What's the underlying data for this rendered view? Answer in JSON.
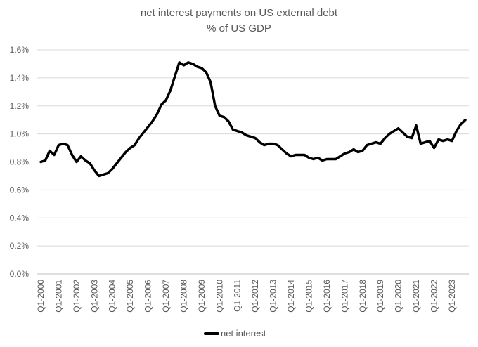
{
  "chart_data": {
    "type": "line",
    "title": "net interest payments on US external debt",
    "subtitle": "% of US GDP",
    "xlabel": "",
    "ylabel": "",
    "ylim": [
      0,
      1.6
    ],
    "y_ticks": [
      "0.0%",
      "0.2%",
      "0.4%",
      "0.6%",
      "0.8%",
      "1.0%",
      "1.2%",
      "1.4%",
      "1.6%"
    ],
    "x_tick_labels": [
      "Q1-2000",
      "Q1-2001",
      "Q1-2002",
      "Q1-2003",
      "Q1-2004",
      "Q1-2005",
      "Q1-2006",
      "Q1-2007",
      "Q1-2008",
      "Q1-2009",
      "Q1-2010",
      "Q1-2011",
      "Q1-2012",
      "Q1-2013",
      "Q1-2014",
      "Q1-2015",
      "Q1-2016",
      "Q1-2017",
      "Q1-2018",
      "Q1-2019",
      "Q1-2020",
      "Q1-2021",
      "Q1-2022",
      "Q1-2023"
    ],
    "grid": true,
    "legend_position": "bottom",
    "series": [
      {
        "name": "net interest",
        "color": "#000000",
        "values": [
          0.8,
          0.81,
          0.88,
          0.85,
          0.92,
          0.93,
          0.92,
          0.85,
          0.8,
          0.84,
          0.81,
          0.79,
          0.74,
          0.7,
          0.71,
          0.72,
          0.75,
          0.79,
          0.83,
          0.87,
          0.9,
          0.92,
          0.97,
          1.01,
          1.05,
          1.09,
          1.14,
          1.21,
          1.24,
          1.31,
          1.41,
          1.51,
          1.49,
          1.51,
          1.5,
          1.48,
          1.47,
          1.44,
          1.37,
          1.2,
          1.13,
          1.12,
          1.09,
          1.03,
          1.02,
          1.01,
          0.99,
          0.98,
          0.97,
          0.94,
          0.92,
          0.93,
          0.93,
          0.92,
          0.89,
          0.86,
          0.84,
          0.85,
          0.85,
          0.85,
          0.83,
          0.82,
          0.83,
          0.81,
          0.82,
          0.82,
          0.82,
          0.84,
          0.86,
          0.87,
          0.89,
          0.87,
          0.88,
          0.92,
          0.93,
          0.94,
          0.93,
          0.97,
          1.0,
          1.02,
          1.04,
          1.01,
          0.98,
          0.97,
          1.06,
          0.93,
          0.94,
          0.95,
          0.9,
          0.96,
          0.95,
          0.96,
          0.95,
          1.02,
          1.07,
          1.1
        ]
      }
    ]
  }
}
